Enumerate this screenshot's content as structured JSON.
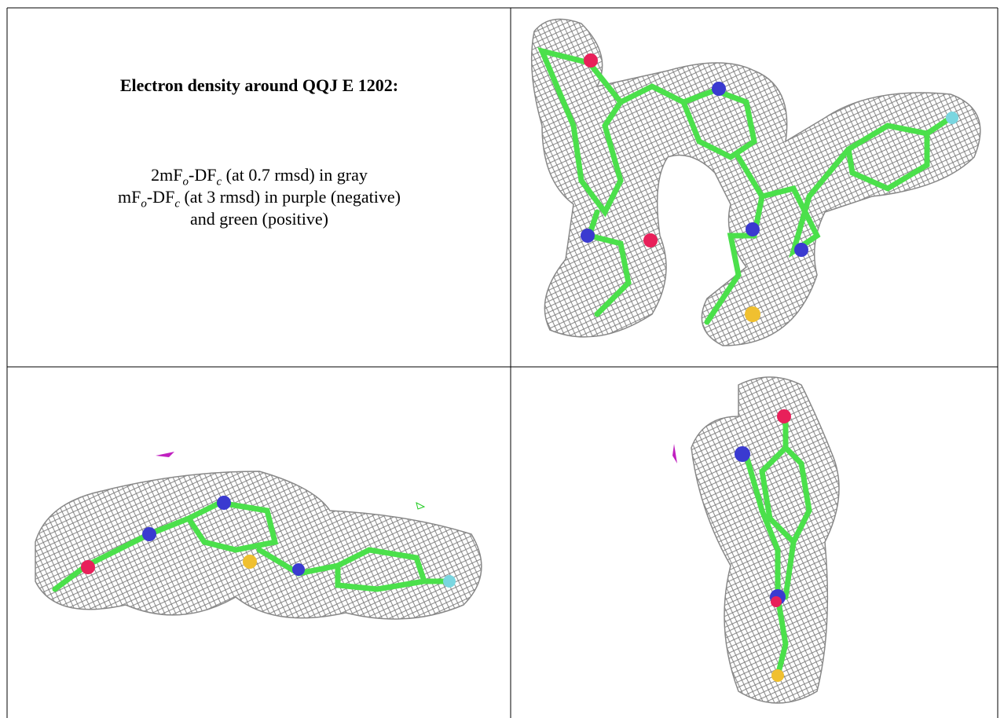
{
  "caption": {
    "title": "Electron density around QQJ E 1202:",
    "lines": [
      [
        "2mF",
        "o",
        "-DF",
        "c",
        " (at 0.7 rmsd) in gray"
      ],
      [
        "mF",
        "o",
        "-DF",
        "c",
        " (at 3 rmsd) in purple (negative)"
      ],
      [
        "and green (positive)"
      ]
    ]
  }
}
